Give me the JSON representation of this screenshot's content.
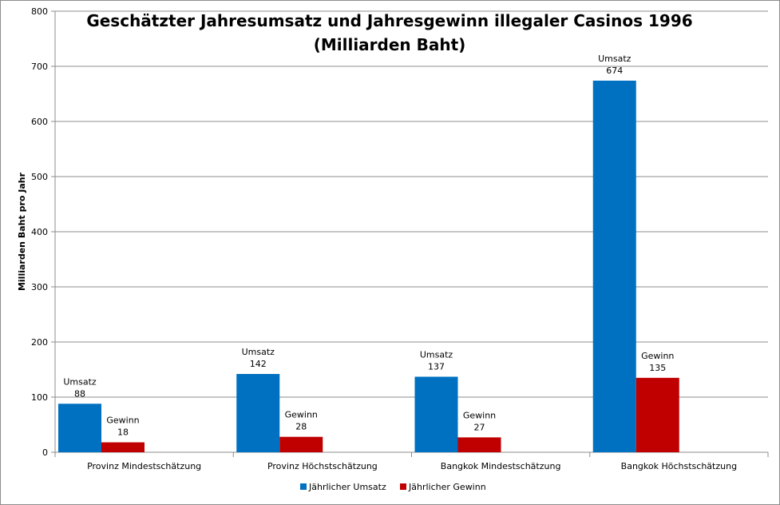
{
  "chart_data": {
    "type": "bar",
    "title_line1": "Geschätzter Jahresumsatz und Jahresgewinn illegaler Casinos 1996",
    "title_line2": "(Milliarden Baht)",
    "xlabel": "",
    "ylabel": "Milliarden Baht pro Jahr",
    "ylim": [
      0,
      800
    ],
    "yticks": [
      0,
      100,
      200,
      300,
      400,
      500,
      600,
      700,
      800
    ],
    "grid": true,
    "legend_position": "bottom",
    "categories": [
      "Provinz Mindestschätzung",
      "Provinz Höchstschätzung",
      "Bangkok Mindestschätzung",
      "Bangkok Höchstschätzung"
    ],
    "series": [
      {
        "name": "Jährlicher Umsatz",
        "color": "#0070C0",
        "label_prefix": [
          "Umsatz",
          "Umsatz",
          "Umsatz",
          "Umsatz"
        ],
        "values": [
          88,
          142,
          137,
          674
        ]
      },
      {
        "name": "Jährlicher Gewinn",
        "color": "#C00000",
        "label_prefix": [
          "Gewinn",
          "Gewinn",
          "Gewinn",
          "Gewinn"
        ],
        "values": [
          18,
          28,
          27,
          135
        ]
      }
    ]
  }
}
